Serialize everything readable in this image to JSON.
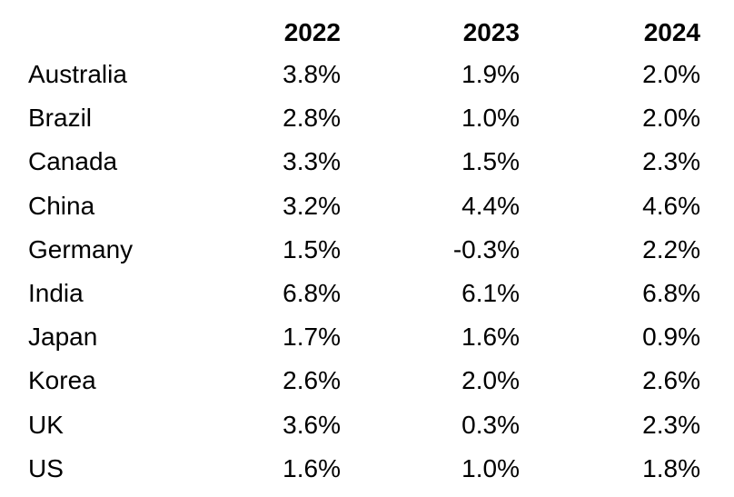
{
  "chart_data": {
    "type": "table",
    "columns": [
      "",
      "2022",
      "2023",
      "2024"
    ],
    "rows": [
      {
        "country": "Australia",
        "values": [
          "3.8%",
          "1.9%",
          "2.0%"
        ]
      },
      {
        "country": "Brazil",
        "values": [
          "2.8%",
          "1.0%",
          "2.0%"
        ]
      },
      {
        "country": "Canada",
        "values": [
          "3.3%",
          "1.5%",
          "2.3%"
        ]
      },
      {
        "country": "China",
        "values": [
          "3.2%",
          "4.4%",
          "4.6%"
        ]
      },
      {
        "country": "Germany",
        "values": [
          "1.5%",
          "-0.3%",
          "2.2%"
        ]
      },
      {
        "country": "India",
        "values": [
          "6.8%",
          "6.1%",
          "6.8%"
        ]
      },
      {
        "country": "Japan",
        "values": [
          "1.7%",
          "1.6%",
          "0.9%"
        ]
      },
      {
        "country": "Korea",
        "values": [
          "2.6%",
          "2.0%",
          "2.6%"
        ]
      },
      {
        "country": "UK",
        "values": [
          "3.6%",
          "0.3%",
          "2.3%"
        ]
      },
      {
        "country": "US",
        "values": [
          "1.6%",
          "1.0%",
          "1.8%"
        ]
      }
    ]
  }
}
